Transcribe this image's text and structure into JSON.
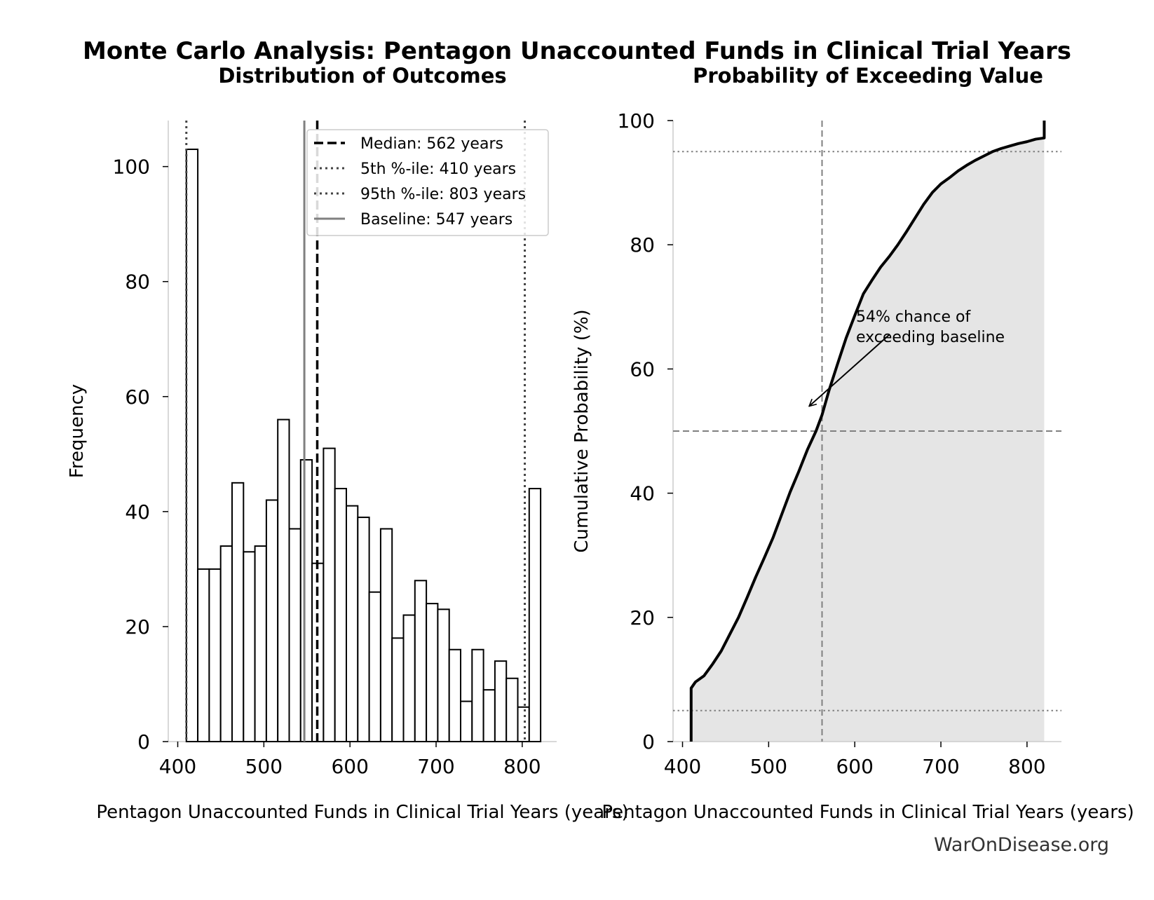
{
  "figure": {
    "suptitle": "Monte Carlo Analysis: Pentagon Unaccounted Funds in Clinical Trial Years",
    "credit": "WarOnDisease.org"
  },
  "chart_data": [
    {
      "type": "bar",
      "subtype": "histogram",
      "title": "Distribution of Outcomes",
      "xlabel": "Pentagon Unaccounted Funds in Clinical Trial Years (years)",
      "ylabel": "Frequency",
      "xlim": [
        389,
        840
      ],
      "ylim": [
        0,
        108
      ],
      "xticks": [
        400,
        500,
        600,
        700,
        800
      ],
      "yticks": [
        0,
        20,
        40,
        60,
        80,
        100
      ],
      "bin_start": 410.0,
      "bin_width": 13.27,
      "bin_count": 31,
      "values": [
        103,
        30,
        30,
        34,
        45,
        33,
        34,
        42,
        56,
        37,
        49,
        31,
        51,
        44,
        41,
        39,
        26,
        37,
        18,
        22,
        28,
        24,
        23,
        16,
        7,
        16,
        9,
        14,
        11,
        6,
        44
      ],
      "bar_fill": "#ffffff",
      "bar_edge": "#000000",
      "grid": false,
      "legend_position": "upper right",
      "reference_lines": [
        {
          "label": "Median: 562 years",
          "x": 562,
          "style": "dashed",
          "color": "#000000"
        },
        {
          "label": "5th %-ile: 410 years",
          "x": 410,
          "style": "dotted",
          "color": "#444444"
        },
        {
          "label": "95th %-ile: 803 years",
          "x": 803,
          "style": "dotted",
          "color": "#444444"
        },
        {
          "label": "Baseline: 547 years",
          "x": 547,
          "style": "solid",
          "color": "#808080"
        }
      ]
    },
    {
      "type": "area",
      "title": "Probability of Exceeding Value",
      "xlabel": "Pentagon Unaccounted Funds in Clinical Trial Years (years)",
      "ylabel": "Cumulative Probability (%)",
      "xlim": [
        389,
        840
      ],
      "ylim": [
        0,
        100
      ],
      "xticks": [
        400,
        500,
        600,
        700,
        800
      ],
      "yticks": [
        0,
        20,
        40,
        60,
        80,
        100
      ],
      "grid": false,
      "fill_color": "#e5e5e5",
      "line_color": "#000000",
      "x": [
        410,
        410,
        415,
        425,
        435,
        445,
        455,
        465,
        475,
        485,
        495,
        505,
        515,
        525,
        535,
        545,
        555,
        562,
        570,
        580,
        590,
        600,
        610,
        620,
        630,
        640,
        650,
        660,
        670,
        680,
        690,
        700,
        710,
        720,
        730,
        740,
        750,
        760,
        770,
        780,
        790,
        800,
        810,
        820,
        820
      ],
      "y": [
        0,
        8.6,
        9.6,
        10.6,
        12.5,
        14.6,
        17.3,
        20.0,
        23.2,
        26.5,
        29.6,
        32.8,
        36.5,
        40.2,
        43.5,
        47.0,
        50.0,
        52.6,
        56.5,
        60.8,
        65.0,
        68.6,
        72.1,
        74.3,
        76.4,
        78.1,
        80.0,
        82.1,
        84.3,
        86.5,
        88.4,
        89.8,
        90.8,
        91.9,
        92.8,
        93.6,
        94.3,
        95.0,
        95.5,
        95.9,
        96.3,
        96.6,
        97.0,
        97.2,
        100
      ],
      "reference_lines": [
        {
          "orientation": "vertical",
          "x": 562,
          "style": "dashed",
          "color": "#808080"
        },
        {
          "orientation": "horizontal",
          "y": 50,
          "style": "dashed",
          "color": "#808080"
        },
        {
          "orientation": "horizontal",
          "y": 5,
          "style": "dotted",
          "color": "#808080"
        },
        {
          "orientation": "horizontal",
          "y": 95,
          "style": "dotted",
          "color": "#808080"
        }
      ],
      "annotation": {
        "text_line1": "54% chance of",
        "text_line2": "exceeding baseline",
        "arrow_target": {
          "x": 547,
          "y": 54
        },
        "text_anchor": {
          "x": 600,
          "y": 68
        }
      }
    }
  ]
}
